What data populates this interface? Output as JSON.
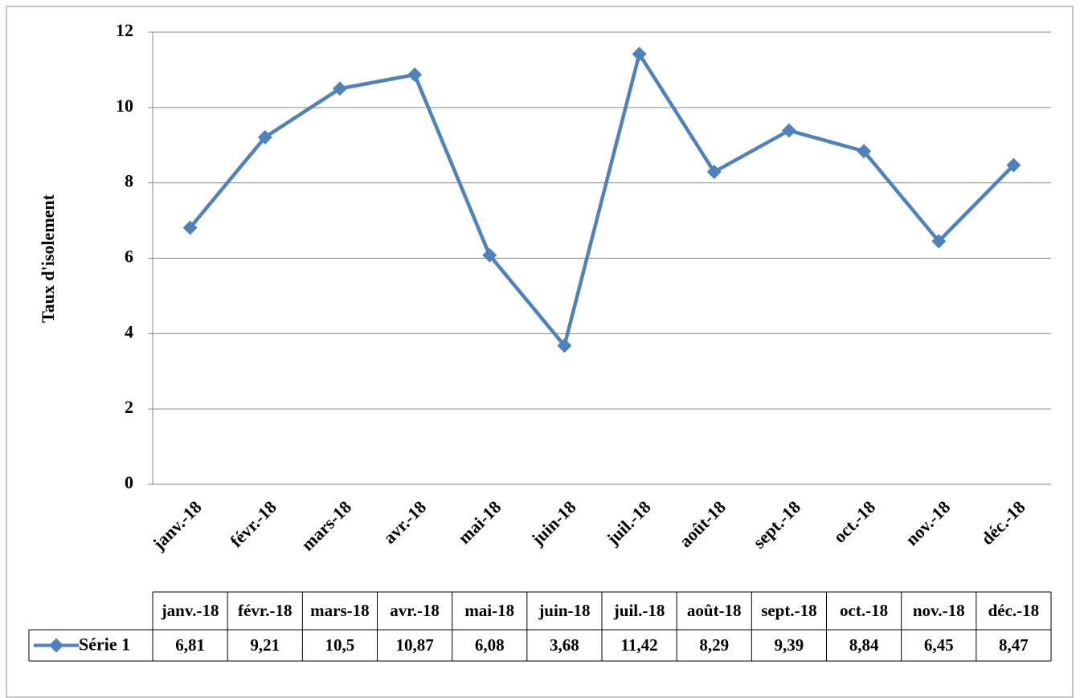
{
  "chart_data": {
    "type": "line",
    "ylabel": "Taux d'isolement",
    "categories": [
      "janv.-18",
      "févr.-18",
      "mars-18",
      "avr.-18",
      "mai-18",
      "juin-18",
      "juil.-18",
      "août-18",
      "sept.-18",
      "oct.-18",
      "nov.-18",
      "déc.-18"
    ],
    "series": [
      {
        "name": "Série 1",
        "color": "#4f81bd",
        "values": [
          6.81,
          9.21,
          10.5,
          10.87,
          6.08,
          3.68,
          11.42,
          8.29,
          9.39,
          8.84,
          6.45,
          8.47
        ],
        "value_labels": [
          "6,81",
          "9,21",
          "10,5",
          "10,87",
          "6,08",
          "3,68",
          "11,42",
          "8,29",
          "9,39",
          "8,84",
          "6,45",
          "8,47"
        ]
      }
    ],
    "ylim": [
      0,
      12
    ],
    "yticks": [
      0,
      2,
      4,
      6,
      8,
      10,
      12
    ],
    "grid": true,
    "data_table": true
  }
}
